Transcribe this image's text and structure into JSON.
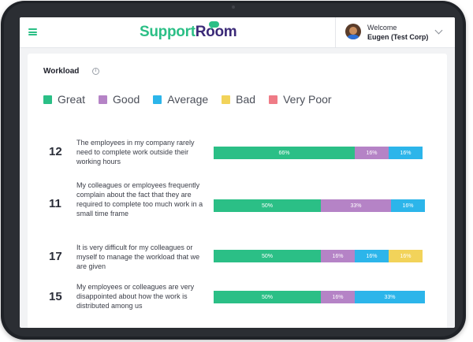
{
  "header": {
    "logo_part1": "Support",
    "logo_part2": "Room",
    "welcome": "Welcome",
    "user_name": "Eugen (Test Corp)"
  },
  "card": {
    "title": "Workload",
    "info_icon": "i"
  },
  "legend": [
    {
      "label": "Great",
      "color": "#2bbf86"
    },
    {
      "label": "Good",
      "color": "#b583c6"
    },
    {
      "label": "Average",
      "color": "#2cb5ea"
    },
    {
      "label": "Bad",
      "color": "#f2d35a"
    },
    {
      "label": "Very Poor",
      "color": "#ef7b86"
    }
  ],
  "rows": [
    {
      "count": "12",
      "text": "The employees in my company rarely need to complete work outside their working hours",
      "segments": [
        {
          "label": "66%",
          "value": 0.66,
          "category": "Great"
        },
        {
          "label": "16%",
          "value": 0.16,
          "category": "Good"
        },
        {
          "label": "16%",
          "value": 0.16,
          "category": "Average"
        }
      ]
    },
    {
      "count": "11",
      "text": "My colleagues or employees frequently complain about the fact that they are required to complete too much work in a small time frame",
      "segments": [
        {
          "label": "50%",
          "value": 0.5,
          "category": "Great"
        },
        {
          "label": "33%",
          "value": 0.33,
          "category": "Good"
        },
        {
          "label": "16%",
          "value": 0.16,
          "category": "Average"
        }
      ]
    },
    {
      "count": "17",
      "text": "It is very difficult for my colleagues or myself to manage the workload that we are given",
      "segments": [
        {
          "label": "50%",
          "value": 0.5,
          "category": "Great"
        },
        {
          "label": "16%",
          "value": 0.16,
          "category": "Good"
        },
        {
          "label": "16%",
          "value": 0.16,
          "category": "Average"
        },
        {
          "label": "16%",
          "value": 0.16,
          "category": "Bad"
        }
      ]
    },
    {
      "count": "15",
      "text": "My employees or colleagues are very disappointed about how the work is distributed among us",
      "segments": [
        {
          "label": "50%",
          "value": 0.5,
          "category": "Great"
        },
        {
          "label": "16%",
          "value": 0.16,
          "category": "Good"
        },
        {
          "label": "33%",
          "value": 0.33,
          "category": "Average"
        }
      ]
    }
  ],
  "icons": {
    "menu": "hamburger-icon",
    "info": "info-icon",
    "dropdown": "chevron-down-icon",
    "avatar": "user-avatar"
  }
}
